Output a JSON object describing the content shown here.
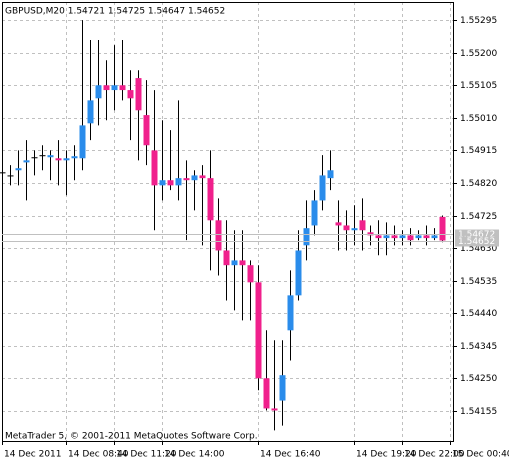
{
  "chart_data": {
    "type": "candlestick",
    "title": "GBPUSD,M20  1.54721 1.54725 1.54647 1.54652",
    "footer": "MetaTrader 5, © 2001-2011 MetaQuotes Software Corp.",
    "xlabels": [
      "14 Dec 2011",
      "14 Dec 08:40",
      "14 Dec 11:20",
      "14 Dec 14:00",
      "14 Dec 16:40",
      "14 Dec 19:20",
      "14 Dec 22:00",
      "15 Dec 00:40"
    ],
    "open": [
      1.54851,
      1.54842,
      1.54857,
      1.5488,
      1.54892,
      1.54901,
      1.54895,
      1.54892,
      1.54886,
      1.54892,
      1.54892,
      1.54994,
      1.55067,
      1.55105,
      1.55091,
      1.55105,
      1.55091,
      1.55126,
      1.55018,
      1.54915,
      1.54813,
      1.54828,
      1.54813,
      1.54834,
      1.54828,
      1.54842,
      1.54834,
      1.54711,
      1.54623,
      1.5458,
      1.54594,
      1.5458,
      1.5453,
      1.5425,
      1.54162,
      1.54185,
      1.5439,
      1.54492,
      1.54638,
      1.54696,
      1.54769,
      1.54834,
      1.54705,
      1.54696,
      1.54682,
      1.54711,
      1.54676,
      1.54667,
      1.54659,
      1.54667,
      1.54659,
      1.54667,
      1.54659,
      1.54667,
      1.54659,
      1.54721
    ],
    "high": [
      1.54886,
      1.54872,
      1.54915,
      1.54945,
      1.54915,
      1.5493,
      1.54915,
      1.54945,
      1.54915,
      1.5493,
      1.55295,
      1.55237,
      1.55237,
      1.55178,
      1.55222,
      1.55237,
      1.55149,
      1.55149,
      1.5512,
      1.55091,
      1.55003,
      1.54974,
      1.55061,
      1.54886,
      1.54857,
      1.54872,
      1.54915,
      1.54775,
      1.54711,
      1.54682,
      1.54682,
      1.54594,
      1.5458,
      1.5439,
      1.54361,
      1.54361,
      1.54565,
      1.54682,
      1.54769,
      1.54799,
      1.54901,
      1.54915,
      1.54769,
      1.5474,
      1.54755,
      1.54775,
      1.54696,
      1.54711,
      1.54705,
      1.54696,
      1.54682,
      1.54688,
      1.54682,
      1.54696,
      1.54688,
      1.54725
    ],
    "low": [
      1.54799,
      1.54813,
      1.54813,
      1.54769,
      1.54842,
      1.54857,
      1.54828,
      1.54813,
      1.54784,
      1.54828,
      1.54857,
      1.54945,
      1.54988,
      1.55003,
      1.55032,
      1.55061,
      1.54945,
      1.54886,
      1.54872,
      1.54682,
      1.54769,
      1.54799,
      1.54769,
      1.54653,
      1.5474,
      1.54638,
      1.54565,
      1.5455,
      1.54477,
      1.54448,
      1.54419,
      1.54419,
      1.54215,
      1.54156,
      1.54098,
      1.54112,
      1.54302,
      1.54477,
      1.54594,
      1.54667,
      1.5474,
      1.54799,
      1.54623,
      1.54623,
      1.54638,
      1.54623,
      1.54638,
      1.54609,
      1.54609,
      1.54638,
      1.54638,
      1.54638,
      1.54653,
      1.54638,
      1.54653,
      1.54647
    ],
    "close": [
      1.54848,
      1.54839,
      1.54863,
      1.54886,
      1.54895,
      1.54898,
      1.54901,
      1.54886,
      1.54892,
      1.54898,
      1.54988,
      1.55061,
      1.55105,
      1.55091,
      1.55105,
      1.55091,
      1.55067,
      1.55032,
      1.5493,
      1.54813,
      1.54828,
      1.54813,
      1.54834,
      1.54828,
      1.54842,
      1.54834,
      1.54711,
      1.54623,
      1.5458,
      1.54594,
      1.5458,
      1.5453,
      1.5425,
      1.54162,
      1.54156,
      1.54259,
      1.54492,
      1.54623,
      1.54688,
      1.54769,
      1.54842,
      1.54857,
      1.54696,
      1.54682,
      1.54688,
      1.54682,
      1.54667,
      1.54659,
      1.54667,
      1.54659,
      1.54667,
      1.54653,
      1.54667,
      1.54659,
      1.54667,
      1.54652
    ],
    "up_color": "#2a8ceb",
    "down_color": "#f0208c",
    "ylim": [
      1.54067,
      1.55348
    ],
    "yticks": [
      1.55295,
      {
        "value": 1.552,
        "label": "1.55200"
      },
      1.55105,
      {
        "value": 1.5501,
        "label": "1.55010"
      },
      1.54915,
      {
        "value": 1.5482,
        "label": "1.54820"
      },
      1.54725,
      {
        "value": 1.5463,
        "label": "1.54630"
      },
      1.54535,
      {
        "value": 1.5444,
        "label": "1.54440"
      },
      1.54345,
      {
        "value": 1.5425,
        "label": "1.54250"
      },
      1.54155
    ],
    "price_lines": [
      1.54672,
      1.54652
    ],
    "grid": true
  }
}
